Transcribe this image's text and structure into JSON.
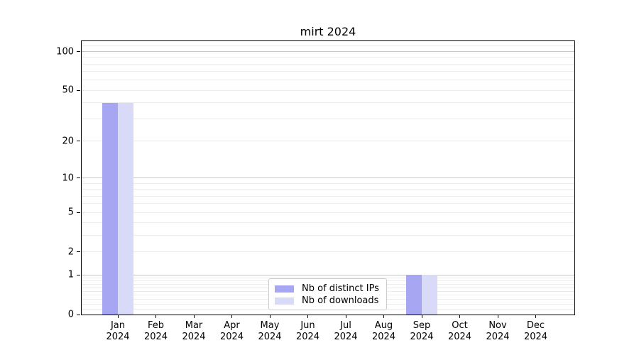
{
  "chart_data": {
    "type": "bar",
    "title": "mirt 2024",
    "categories": [
      "Jan",
      "Feb",
      "Mar",
      "Apr",
      "May",
      "Jun",
      "Jul",
      "Aug",
      "Sep",
      "Oct",
      "Nov",
      "Dec"
    ],
    "year_label": "2024",
    "series": [
      {
        "name": "Nb of distinct IPs",
        "color": "#a6a6f2",
        "values": [
          40,
          0,
          0,
          0,
          0,
          0,
          0,
          0,
          1,
          0,
          0,
          0
        ]
      },
      {
        "name": "Nb of downloads",
        "color": "#d9d9f8",
        "values": [
          40,
          0,
          0,
          0,
          0,
          0,
          0,
          0,
          1,
          0,
          0,
          0
        ]
      }
    ],
    "yscale": "log1p",
    "ylim": [
      0,
      120
    ],
    "yticks": [
      {
        "value": 100,
        "label": "100"
      },
      {
        "value": 50,
        "label": "50"
      },
      {
        "value": 20,
        "label": "20"
      },
      {
        "value": 10,
        "label": "10"
      },
      {
        "value": 5,
        "label": "5"
      },
      {
        "value": 2,
        "label": "2"
      },
      {
        "value": 1,
        "label": "1"
      },
      {
        "value": 0,
        "label": "0"
      }
    ],
    "grid": {
      "major_values": [
        100,
        10,
        1
      ],
      "minor_values": [
        110,
        90,
        80,
        70,
        60,
        50,
        40,
        30,
        20,
        9,
        8,
        7,
        6,
        5,
        4,
        3,
        2,
        0.9,
        0.8,
        0.7,
        0.6,
        0.5,
        0.4,
        0.3,
        0.2,
        0.1
      ],
      "major_color": "#c6c6c6",
      "minor_color": "#ececec"
    },
    "legend": {
      "position": "lower center"
    },
    "axis_color": "#000000",
    "background_color": "#ffffff"
  }
}
